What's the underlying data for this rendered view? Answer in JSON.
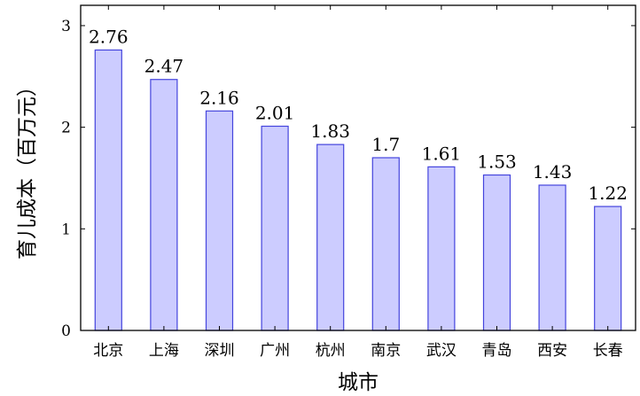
{
  "chart_data": {
    "type": "bar",
    "categories": [
      "北京",
      "上海",
      "深圳",
      "广州",
      "杭州",
      "南京",
      "武汉",
      "青岛",
      "西安",
      "长春"
    ],
    "values": [
      2.76,
      2.47,
      2.16,
      2.01,
      1.83,
      1.7,
      1.61,
      1.53,
      1.43,
      1.22
    ],
    "value_labels": [
      "2.76",
      "2.47",
      "2.16",
      "2.01",
      "1.83",
      "1.7",
      "1.61",
      "1.53",
      "1.43",
      "1.22"
    ],
    "title": "",
    "xlabel": "城市",
    "ylabel": "育儿成本（百万元）",
    "ylim": [
      0,
      3.2
    ],
    "yticks": [
      0,
      1,
      2,
      3
    ],
    "ytick_labels": [
      "0",
      "1",
      "2",
      "3"
    ],
    "grid": false,
    "legend": "none",
    "colors": {
      "bar_fill": "#ccccff",
      "bar_stroke": "#4444dd",
      "axis": "#000000"
    }
  }
}
